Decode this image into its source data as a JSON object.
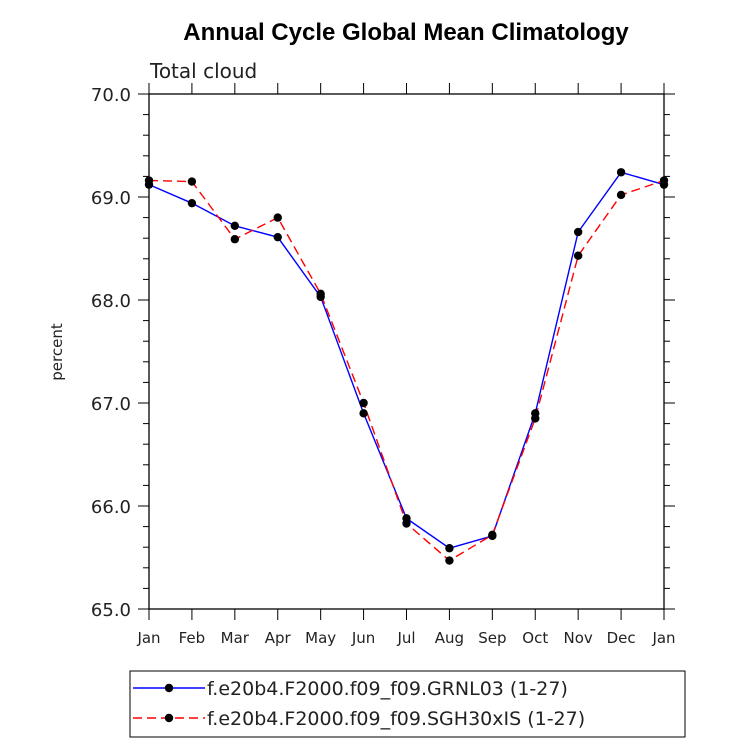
{
  "chart_data": {
    "type": "line",
    "title": "Annual Cycle Global Mean Climatology",
    "subtitle": "Total cloud",
    "xlabel": "",
    "ylabel": "percent",
    "categories": [
      "Jan",
      "Feb",
      "Mar",
      "Apr",
      "May",
      "Jun",
      "Jul",
      "Aug",
      "Sep",
      "Oct",
      "Nov",
      "Dec",
      "Jan"
    ],
    "ylim": [
      65.0,
      70.0
    ],
    "yticks": [
      "65.0",
      "66.0",
      "67.0",
      "68.0",
      "69.0",
      "70.0"
    ],
    "grid": false,
    "legend_position": "bottom",
    "series": [
      {
        "name": "f.e20b4.F2000.f09_f09.GRNL03 (1-27)",
        "color": "#0000ff",
        "style": "solid",
        "values": [
          69.12,
          68.94,
          68.72,
          68.61,
          68.03,
          66.9,
          65.88,
          65.59,
          65.71,
          66.9,
          68.66,
          69.24,
          69.12
        ]
      },
      {
        "name": "f.e20b4.F2000.f09_f09.SGH30xIS (1-27)",
        "color": "#ff0000",
        "style": "dashed",
        "values": [
          69.16,
          69.15,
          68.59,
          68.8,
          68.06,
          67.0,
          65.83,
          65.47,
          65.72,
          66.85,
          68.43,
          69.02,
          69.16
        ]
      }
    ]
  }
}
